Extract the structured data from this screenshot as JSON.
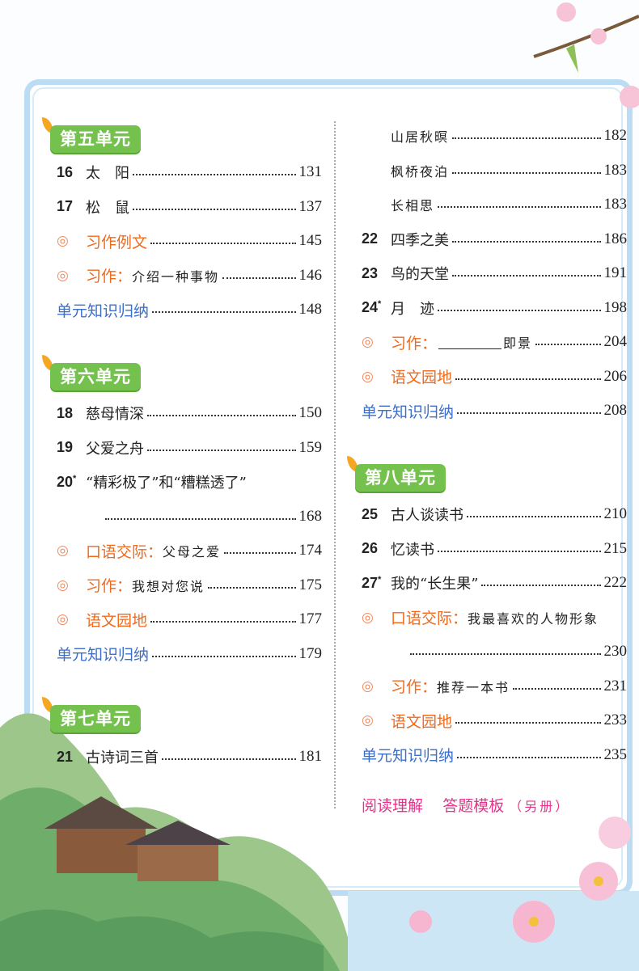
{
  "left": [
    {
      "header": "第五单元",
      "items": [
        {
          "kind": "lesson",
          "num": "16",
          "title": "太　阳",
          "page": "131"
        },
        {
          "kind": "lesson",
          "num": "17",
          "title": "松　鼠",
          "page": "137"
        },
        {
          "kind": "ring",
          "label": "习作例文",
          "page": "145"
        },
        {
          "kind": "ring",
          "label": "习作：",
          "title": "介绍一种事物",
          "page": "146"
        },
        {
          "kind": "summary",
          "label": "单元知识归纳",
          "page": "148"
        }
      ]
    },
    {
      "header": "第六单元",
      "items": [
        {
          "kind": "lesson",
          "num": "18",
          "title": "慈母情深",
          "page": "150"
        },
        {
          "kind": "lesson",
          "num": "19",
          "title": "父爱之舟",
          "page": "159"
        },
        {
          "kind": "lesson",
          "num": "20",
          "star": "*",
          "title": "“精彩极了”和“糟糕透了”",
          "page": ""
        },
        {
          "kind": "cont",
          "page": "168"
        },
        {
          "kind": "ring",
          "label": "口语交际：",
          "title": "父母之爱",
          "page": "174"
        },
        {
          "kind": "ring",
          "label": "习作：",
          "title": "我想对您说",
          "page": "175"
        },
        {
          "kind": "ring",
          "label": "语文园地",
          "page": "177"
        },
        {
          "kind": "summary",
          "label": "单元知识归纳",
          "page": "179"
        }
      ]
    },
    {
      "header": "第七单元",
      "items": [
        {
          "kind": "lesson",
          "num": "21",
          "title": "古诗词三首",
          "page": "181"
        }
      ]
    }
  ],
  "right": [
    {
      "header": "",
      "items": [
        {
          "kind": "sub",
          "title": "山居秋暝",
          "page": "182"
        },
        {
          "kind": "sub",
          "title": "枫桥夜泊",
          "page": "183"
        },
        {
          "kind": "sub",
          "title": "长相思",
          "page": "183"
        },
        {
          "kind": "lesson",
          "num": "22",
          "title": "四季之美",
          "page": "186"
        },
        {
          "kind": "lesson",
          "num": "23",
          "title": "鸟的天堂",
          "page": "191"
        },
        {
          "kind": "lesson",
          "num": "24",
          "star": "*",
          "title": "月　迹",
          "page": "198"
        },
        {
          "kind": "ring",
          "label": "习作：",
          "blank": true,
          "title": "即景",
          "page": "204"
        },
        {
          "kind": "ring",
          "label": "语文园地",
          "page": "206"
        },
        {
          "kind": "summary",
          "label": "单元知识归纳",
          "page": "208"
        }
      ]
    },
    {
      "header": "第八单元",
      "items": [
        {
          "kind": "lesson",
          "num": "25",
          "title": "古人谈读书",
          "page": "210"
        },
        {
          "kind": "lesson",
          "num": "26",
          "title": "忆读书",
          "page": "215"
        },
        {
          "kind": "lesson",
          "num": "27",
          "star": "*",
          "title": "我的“长生果”",
          "page": "222"
        },
        {
          "kind": "ring",
          "label": "口语交际：",
          "title": "我最喜欢的人物形象",
          "page": ""
        },
        {
          "kind": "cont",
          "page": "230"
        },
        {
          "kind": "ring",
          "label": "习作：",
          "title": "推荐一本书",
          "page": "231"
        },
        {
          "kind": "ring",
          "label": "语文园地",
          "page": "233"
        },
        {
          "kind": "summary",
          "label": "单元知识归纳",
          "page": "235"
        }
      ]
    }
  ],
  "footer": {
    "a": "阅读理解",
    "b": "答题模板",
    "note": "（另册）"
  },
  "colors": {
    "header_green": "#74c14e",
    "orange": "#f06a1e",
    "blue": "#3c6fcc",
    "pink": "#e8318a",
    "frame": "#bcdcf3"
  },
  "ring_icon": "double-circle-icon"
}
